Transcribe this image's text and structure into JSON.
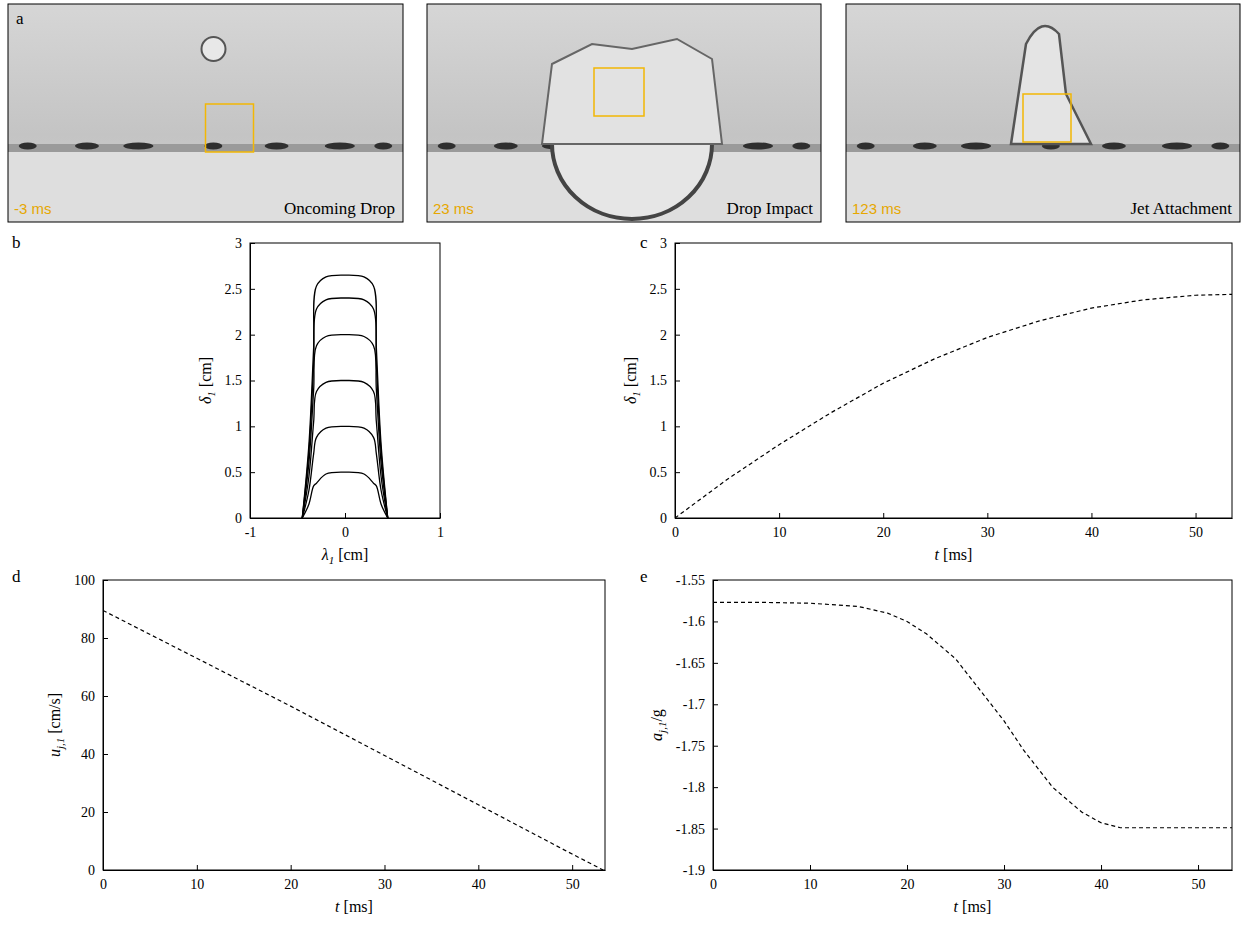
{
  "chart_data": [
    {
      "type": "image",
      "label": "a",
      "frames": [
        {
          "time": "-3 ms",
          "caption": "Oncoming Drop"
        },
        {
          "time": "23 ms",
          "caption": "Drop Impact"
        },
        {
          "time": "123 ms",
          "caption": "Jet Attachment"
        }
      ]
    },
    {
      "type": "line",
      "label": "b",
      "x_label": {
        "symbol": "λ",
        "sub": "1",
        "after": " [cm]"
      },
      "y_label": {
        "symbol": "δ",
        "sub": "1",
        "after": " [cm]"
      },
      "xlim": [
        -1,
        1
      ],
      "xticks": [
        -1,
        0,
        1
      ],
      "ylim": [
        0,
        3
      ],
      "yticks": [
        0,
        0.5,
        1,
        1.5,
        2,
        2.5,
        3
      ],
      "series": [
        {
          "color": "#000000",
          "line_style": "solid",
          "x": [
            -0.45,
            -0.38,
            -0.33,
            -0.3,
            -0.2,
            0,
            0.2,
            0.3,
            0.33,
            0.38,
            0.45
          ],
          "values": [
            0,
            0.15,
            0.35,
            0.38,
            0.48,
            0.5,
            0.48,
            0.38,
            0.35,
            0.15,
            0
          ]
        },
        {
          "color": "#000000",
          "line_style": "solid",
          "x": [
            -0.45,
            -0.38,
            -0.33,
            -0.3,
            -0.2,
            0,
            0.2,
            0.3,
            0.33,
            0.38,
            0.45
          ],
          "values": [
            0,
            0.3,
            0.7,
            0.88,
            0.98,
            1.0,
            0.98,
            0.88,
            0.7,
            0.3,
            0
          ]
        },
        {
          "color": "#000000",
          "line_style": "solid",
          "x": [
            -0.45,
            -0.38,
            -0.33,
            -0.3,
            -0.2,
            0,
            0.2,
            0.3,
            0.33,
            0.38,
            0.45
          ],
          "values": [
            0,
            0.45,
            1.05,
            1.38,
            1.48,
            1.5,
            1.48,
            1.38,
            1.05,
            0.45,
            0
          ]
        },
        {
          "color": "#000000",
          "line_style": "solid",
          "x": [
            -0.45,
            -0.38,
            -0.33,
            -0.3,
            -0.2,
            0,
            0.2,
            0.3,
            0.33,
            0.38,
            0.45
          ],
          "values": [
            0,
            0.6,
            1.4,
            1.88,
            1.98,
            2.0,
            1.98,
            1.88,
            1.4,
            0.6,
            0
          ]
        },
        {
          "color": "#000000",
          "line_style": "solid",
          "x": [
            -0.45,
            -0.38,
            -0.33,
            -0.3,
            -0.2,
            0,
            0.2,
            0.3,
            0.33,
            0.38,
            0.45
          ],
          "values": [
            0,
            0.72,
            1.68,
            2.28,
            2.38,
            2.4,
            2.38,
            2.28,
            1.68,
            0.72,
            0
          ]
        },
        {
          "color": "#000000",
          "line_style": "solid",
          "x": [
            -0.45,
            -0.38,
            -0.33,
            -0.3,
            -0.2,
            0,
            0.2,
            0.3,
            0.33,
            0.38,
            0.45
          ],
          "values": [
            0,
            0.8,
            1.86,
            2.53,
            2.63,
            2.65,
            2.63,
            2.53,
            1.86,
            0.8,
            0
          ]
        }
      ]
    },
    {
      "type": "line",
      "label": "c",
      "x_label": {
        "symbol": "t",
        "after": " [ms]"
      },
      "y_label": {
        "symbol": "δ",
        "sub": "1",
        "after": " [cm]"
      },
      "xlim": [
        0,
        53.5
      ],
      "xticks": [
        0,
        10,
        20,
        30,
        40,
        50
      ],
      "ylim": [
        0,
        3
      ],
      "yticks": [
        0,
        0.5,
        1,
        1.5,
        2,
        2.5,
        3
      ],
      "x": [
        0,
        5,
        10,
        15,
        20,
        25,
        30,
        35,
        40,
        45,
        50,
        53.5
      ],
      "series": [
        {
          "color": "#000000",
          "line_style": "dashed",
          "values": [
            0,
            0.42,
            0.8,
            1.15,
            1.47,
            1.74,
            1.97,
            2.15,
            2.29,
            2.38,
            2.43,
            2.44
          ]
        }
      ]
    },
    {
      "type": "line",
      "label": "d",
      "x_label": {
        "symbol": "t",
        "after": " [ms]"
      },
      "y_label": {
        "symbol": "u",
        "sub": "j,1",
        "after": " [cm/s]"
      },
      "xlim": [
        0,
        53.5
      ],
      "xticks": [
        0,
        10,
        20,
        30,
        40,
        50
      ],
      "ylim": [
        0,
        100
      ],
      "yticks": [
        0,
        20,
        40,
        60,
        80,
        100
      ],
      "x": [
        0,
        10,
        20,
        30,
        40,
        50,
        53.3
      ],
      "series": [
        {
          "color": "#000000",
          "line_style": "dashed",
          "values": [
            89.5,
            73,
            56.5,
            39.5,
            22.5,
            5.5,
            0
          ]
        }
      ]
    },
    {
      "type": "line",
      "label": "e",
      "x_label": {
        "symbol": "t",
        "after": " [ms]"
      },
      "y_label": {
        "symbol": "a",
        "sub": "j,1",
        "after": "/g"
      },
      "xlim": [
        0,
        53.5
      ],
      "xticks": [
        0,
        10,
        20,
        30,
        40,
        50
      ],
      "ylim": [
        -1.9,
        -1.55
      ],
      "yticks": [
        -1.9,
        -1.85,
        -1.8,
        -1.75,
        -1.7,
        -1.65,
        -1.6,
        -1.55
      ],
      "x": [
        0,
        5,
        10,
        15,
        18,
        20,
        22,
        25,
        28,
        30,
        32,
        35,
        38,
        40,
        42,
        45,
        50,
        53.5
      ],
      "series": [
        {
          "color": "#000000",
          "line_style": "dashed",
          "values": [
            -1.577,
            -1.577,
            -1.578,
            -1.582,
            -1.59,
            -1.6,
            -1.615,
            -1.645,
            -1.69,
            -1.72,
            -1.755,
            -1.8,
            -1.83,
            -1.843,
            -1.849,
            -1.849,
            -1.849,
            -1.849
          ]
        }
      ]
    }
  ]
}
